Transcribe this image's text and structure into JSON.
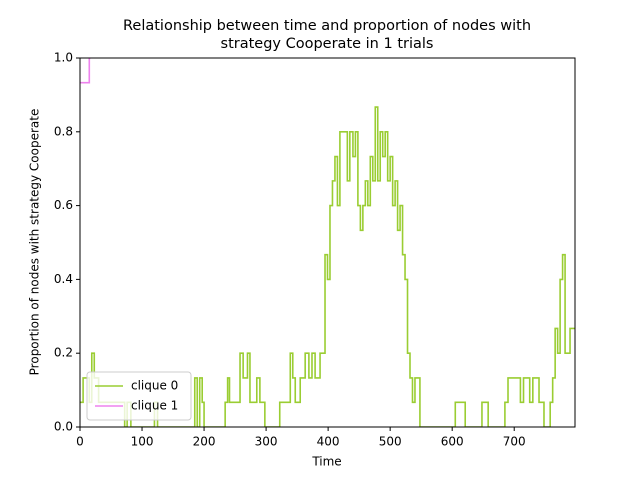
{
  "chart_data": {
    "type": "line",
    "drawstyle": "steps-post",
    "title": [
      "Relationship between time and proportion of nodes with",
      "strategy Cooperate in 1 trials"
    ],
    "x_label": "Time",
    "y_label": "Proportion of nodes with strategy Cooperate",
    "xlim": [
      0,
      798
    ],
    "ylim": [
      0,
      1.0
    ],
    "xticks": [
      0,
      100,
      200,
      300,
      400,
      500,
      600,
      700
    ],
    "yticks": [
      {
        "value": 0,
        "label": "0.0"
      },
      {
        "value": 0.2,
        "label": "0.2"
      },
      {
        "value": 0.4,
        "label": "0.4"
      },
      {
        "value": 0.6,
        "label": "0.6"
      },
      {
        "value": 0.8,
        "label": "0.8"
      },
      {
        "value": 1.0,
        "label": "1.0"
      }
    ],
    "legend": "lower left",
    "series": [
      {
        "name": "clique 0",
        "color": "#9acd32",
        "x": [
          0,
          5,
          15,
          19,
          23,
          30,
          72,
          76,
          82,
          120,
          125,
          185,
          189,
          193,
          197,
          200,
          234,
          238,
          241,
          258,
          263,
          270,
          274,
          285,
          290,
          298,
          322,
          339,
          343,
          347,
          355,
          363,
          369,
          374,
          379,
          387,
          395,
          399,
          403,
          407,
          411,
          415,
          419,
          427,
          431,
          435,
          440,
          444,
          448,
          452,
          456,
          460,
          464,
          468,
          472,
          476,
          480,
          484,
          488,
          492,
          496,
          500,
          504,
          508,
          512,
          516,
          520,
          524,
          528,
          532,
          536,
          540,
          548,
          605,
          621,
          648,
          658,
          685,
          690,
          710,
          715,
          725,
          730,
          740,
          748,
          758,
          762,
          766,
          770,
          774,
          778,
          782,
          790,
          798
        ],
        "values": [
          0.067,
          0.133,
          0.067,
          0.2,
          0.133,
          0.067,
          0,
          0.067,
          0,
          0.067,
          0,
          0.133,
          0,
          0.133,
          0.067,
          0,
          0.067,
          0.133,
          0.067,
          0.2,
          0.133,
          0.2,
          0.067,
          0.133,
          0.067,
          0,
          0.067,
          0.2,
          0.133,
          0.067,
          0.133,
          0.2,
          0.133,
          0.2,
          0.133,
          0.2,
          0.467,
          0.4,
          0.6,
          0.667,
          0.733,
          0.6,
          0.8,
          0.8,
          0.667,
          0.8,
          0.733,
          0.8,
          0.6,
          0.533,
          0.6,
          0.667,
          0.6,
          0.733,
          0.667,
          0.867,
          0.667,
          0.8,
          0.733,
          0.8,
          0.667,
          0.733,
          0.6,
          0.667,
          0.533,
          0.6,
          0.467,
          0.4,
          0.2,
          0.133,
          0.067,
          0.133,
          0,
          0.067,
          0,
          0.067,
          0,
          0.067,
          0.133,
          0.067,
          0.133,
          0.067,
          0.133,
          0.067,
          0,
          0.067,
          0.133,
          0.267,
          0.2,
          0.4,
          0.467,
          0.2,
          0.267,
          0.267
        ]
      },
      {
        "name": "clique 1",
        "color": "#ee82ee",
        "x": [
          0,
          15,
          17
        ],
        "values": [
          0.933,
          1.0,
          1.0
        ]
      }
    ]
  }
}
